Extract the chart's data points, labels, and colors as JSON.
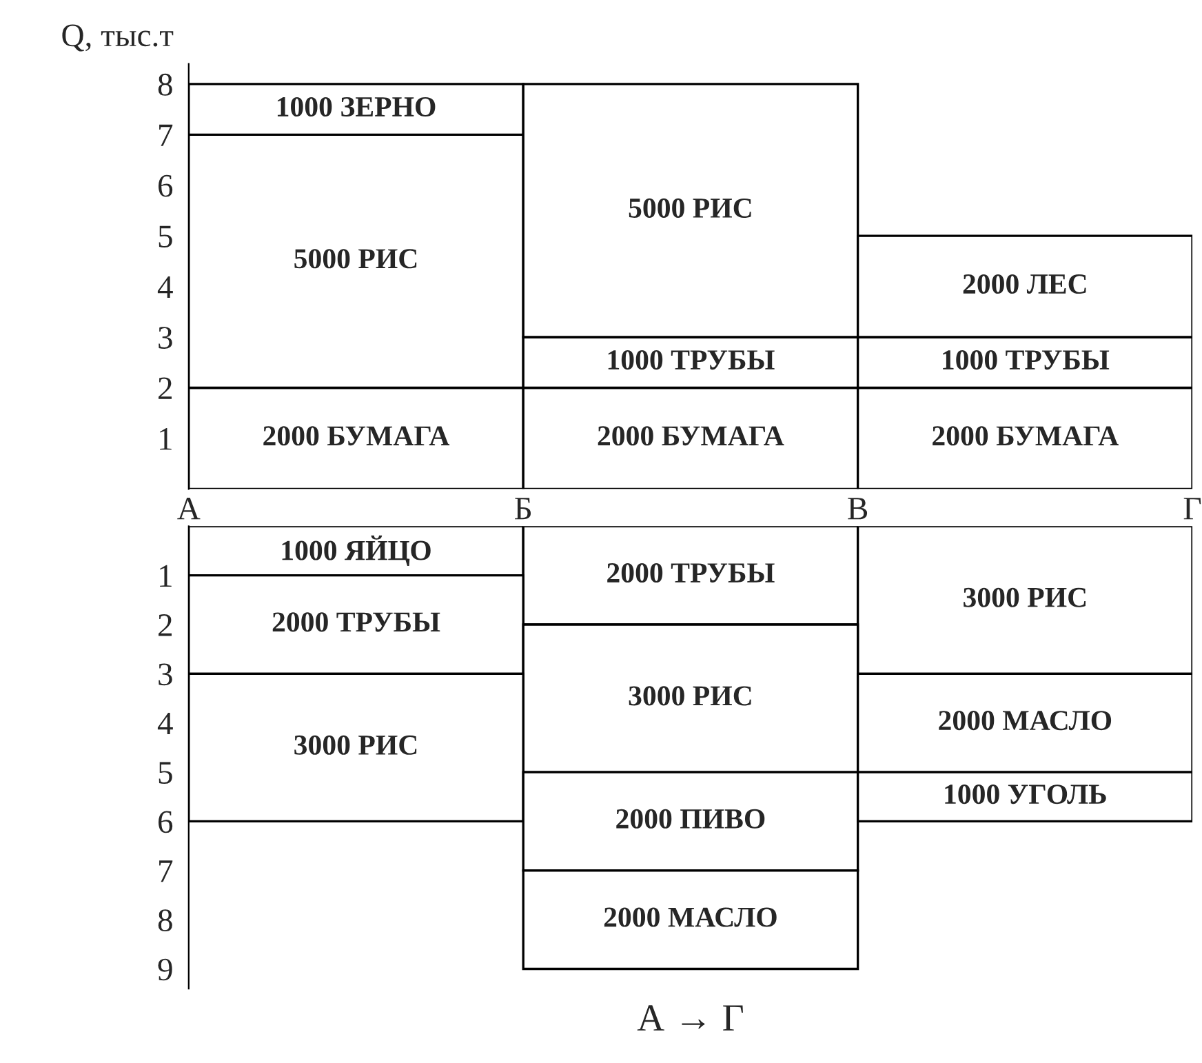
{
  "chart_data": [
    {
      "type": "bar",
      "stacked": true,
      "ylabel": "Q, тыс.т",
      "categories": [
        null,
        null,
        null
      ],
      "ylim": [
        0,
        8.4
      ],
      "yticks": [
        1,
        2,
        3,
        4,
        5,
        6,
        7,
        8
      ],
      "annotations": [
        "А",
        "Б",
        "В",
        "Г",
        "2000 БУМАГА",
        "2000 БУМАГА",
        "2000 БУМАГА",
        "5000 РИС",
        "1000 ТРУБЫ",
        "1000 ТРУБЫ",
        "1000 ЗЕРНО",
        "5000 РИС",
        "2000 ЛЕС"
      ],
      "series": [
        {
          "color": "#ffffff",
          "values": [
            2,
            2,
            2
          ]
        },
        {
          "color": "#ffffff",
          "values": [
            5,
            1,
            1
          ]
        },
        {
          "color": "#ffffff",
          "values": [
            1,
            5,
            2
          ]
        }
      ]
    },
    {
      "type": "bar",
      "stacked": true,
      "xlabel": "А → Г",
      "categories": [
        null,
        null,
        null
      ],
      "ylim": [
        9.4,
        0
      ],
      "yticks": [
        1,
        2,
        3,
        4,
        5,
        6,
        7,
        8,
        9
      ],
      "annotations": [
        "1000 ЯЙЦО",
        "2000 ТРУБЫ",
        "3000 РИС",
        "2000 ТРУБЫ",
        "3000 РИС",
        "2000 МАСЛО",
        "3000 РИС",
        "2000 ПИВО",
        "1000 УГОЛЬ",
        "2000 МАСЛО"
      ],
      "series": [
        {
          "color": "#ffffff",
          "values": [
            1,
            2,
            3
          ]
        },
        {
          "color": "#ffffff",
          "values": [
            2,
            3,
            2
          ]
        },
        {
          "color": "#ffffff",
          "values": [
            3,
            2,
            1
          ]
        },
        {
          "color": "#ffffff",
          "values": [
            null,
            2,
            null
          ]
        }
      ]
    }
  ]
}
